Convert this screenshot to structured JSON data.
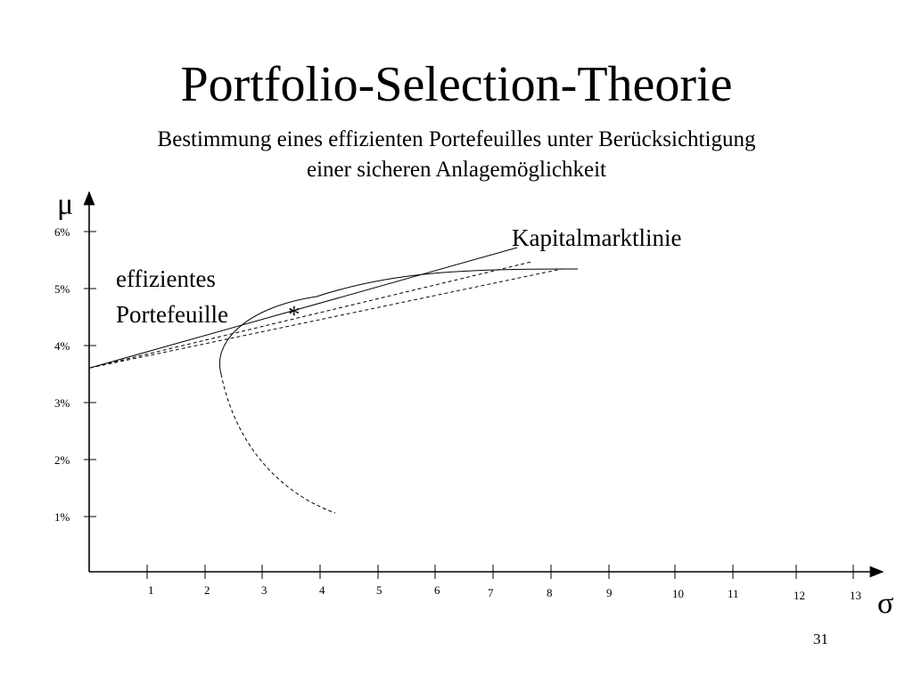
{
  "slide": {
    "title": "Portfolio-Selection-Theorie",
    "subtitle_lines": [
      "Bestimmung eines effizienten Portefeuilles unter Berücksichtigung",
      "einer sicheren Anlagemöglichkeit"
    ],
    "page_number": "31"
  },
  "diagram": {
    "y_axis_symbol": "μ",
    "x_axis_symbol": "σ",
    "y_ticks": [
      "6%",
      "5%",
      "4%",
      "3%",
      "2%",
      "1%"
    ],
    "x_ticks": [
      "1",
      "2",
      "3",
      "4",
      "5",
      "6",
      "7",
      "8",
      "9",
      "10",
      "11",
      "12",
      "13"
    ],
    "capital_market_line_label": "Kapitalmarktlinie",
    "efficient_portfolio_label_lines": [
      "effizientes",
      "Portefeuille"
    ],
    "tangency_marker": "*"
  }
}
